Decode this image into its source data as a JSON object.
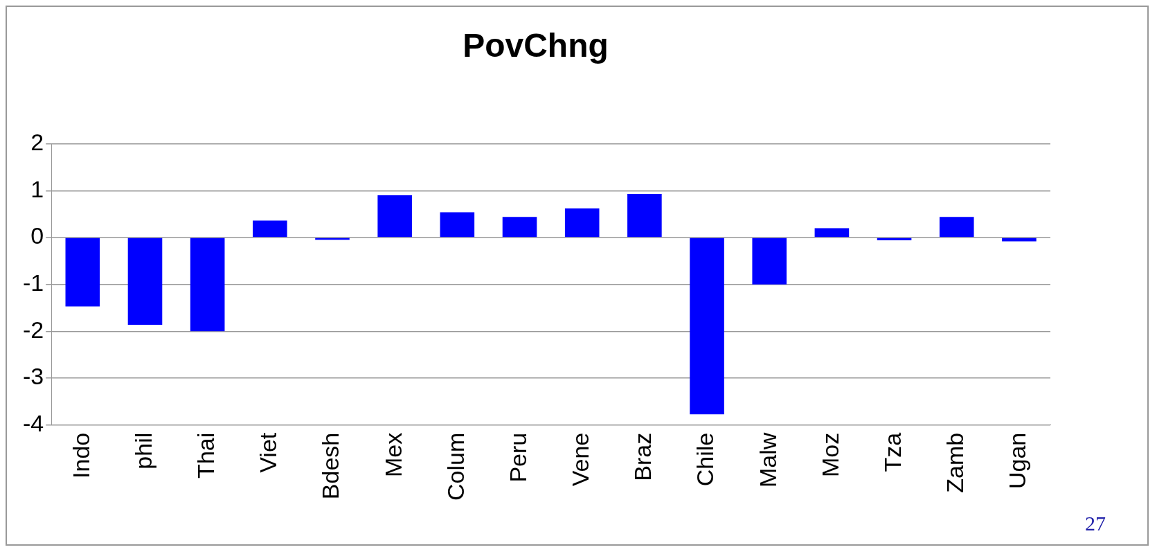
{
  "chart_data": {
    "type": "bar",
    "title": "PovChng",
    "categories": [
      "Indo",
      "phil",
      "Thai",
      "Viet",
      "Bdesh",
      "Mex",
      "Colum",
      "Peru",
      "Vene",
      "Braz",
      "Chile",
      "Malw",
      "Moz",
      "Tza",
      "Zamb",
      "Ugan"
    ],
    "values": [
      -1.47,
      -1.86,
      -2.0,
      0.36,
      -0.05,
      0.9,
      0.54,
      0.44,
      0.62,
      0.93,
      -3.77,
      -1.0,
      0.2,
      -0.06,
      0.44,
      -0.08
    ],
    "color": "#0000ff",
    "ylim": [
      -4,
      2
    ],
    "yticks": [
      -4,
      -3,
      -2,
      -1,
      0,
      1,
      2
    ],
    "grid": "y",
    "legend": false,
    "annotations": [
      "27"
    ]
  }
}
